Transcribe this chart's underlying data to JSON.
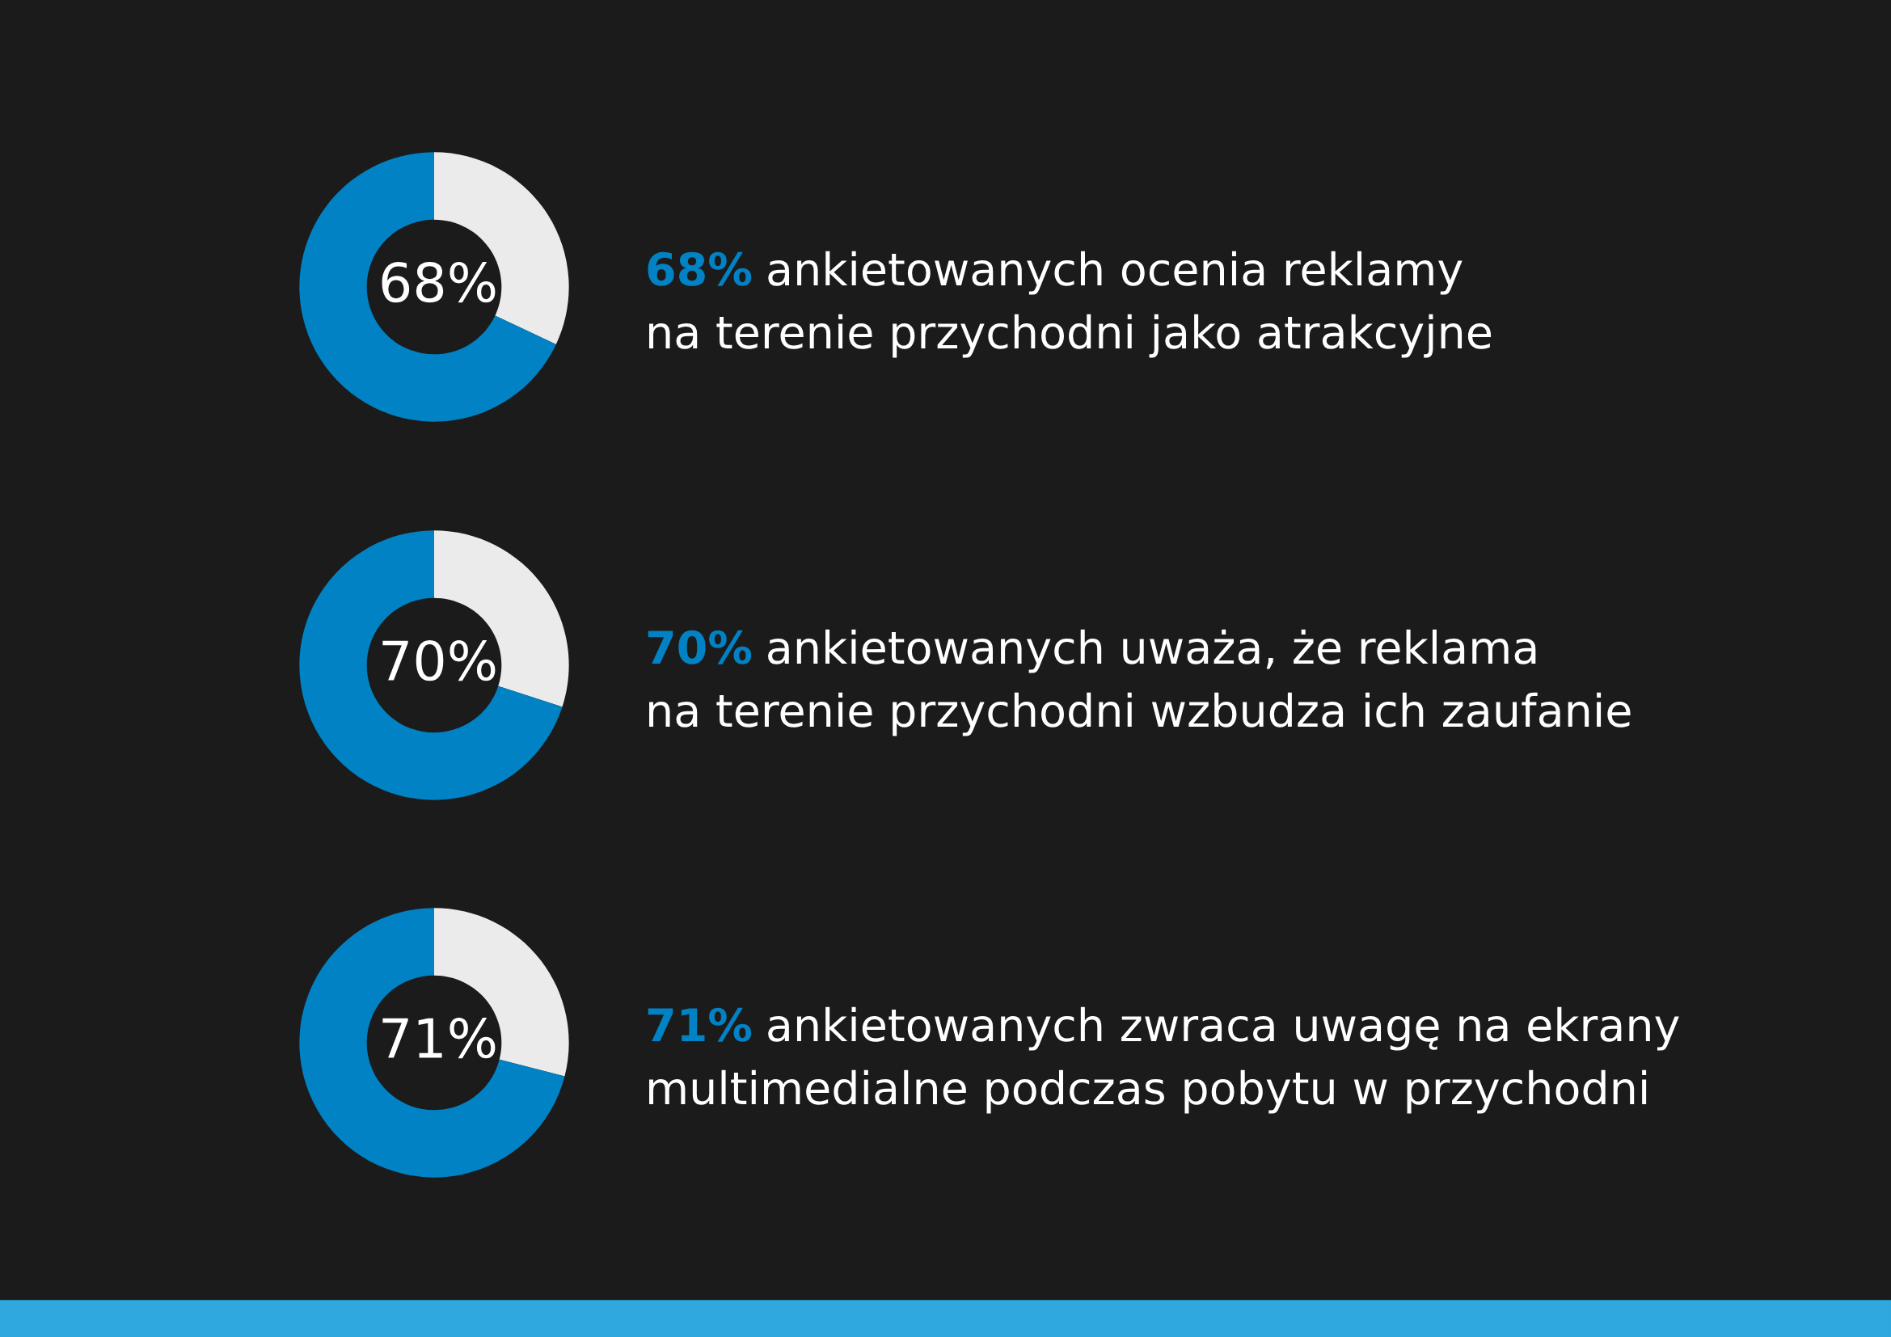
{
  "chart_data": [
    {
      "type": "donut",
      "categories": [
        null,
        null
      ],
      "values": [
        32,
        68
      ],
      "colors": [
        "#ebebeb",
        "#0082c4"
      ],
      "annotations": [
        "68%",
        "68%",
        "ankietowanych ocenia reklamy\nna terenie przychodni jako atrakcyjne"
      ]
    },
    {
      "type": "donut",
      "categories": [
        null,
        null
      ],
      "values": [
        30,
        70
      ],
      "colors": [
        "#ebebeb",
        "#0082c4"
      ],
      "annotations": [
        "70%",
        "70%",
        "ankietowanych uważa, że reklama\nna terenie przychodni wzbudza ich zaufanie"
      ]
    },
    {
      "type": "donut",
      "categories": [
        null,
        null
      ],
      "values": [
        29,
        71
      ],
      "colors": [
        "#ebebeb",
        "#0082c4"
      ],
      "annotations": [
        "71%",
        "71%",
        "ankietowanych zwraca uwagę na ekrany\nmultimedialne podczas pobytu w przychodni"
      ]
    }
  ]
}
